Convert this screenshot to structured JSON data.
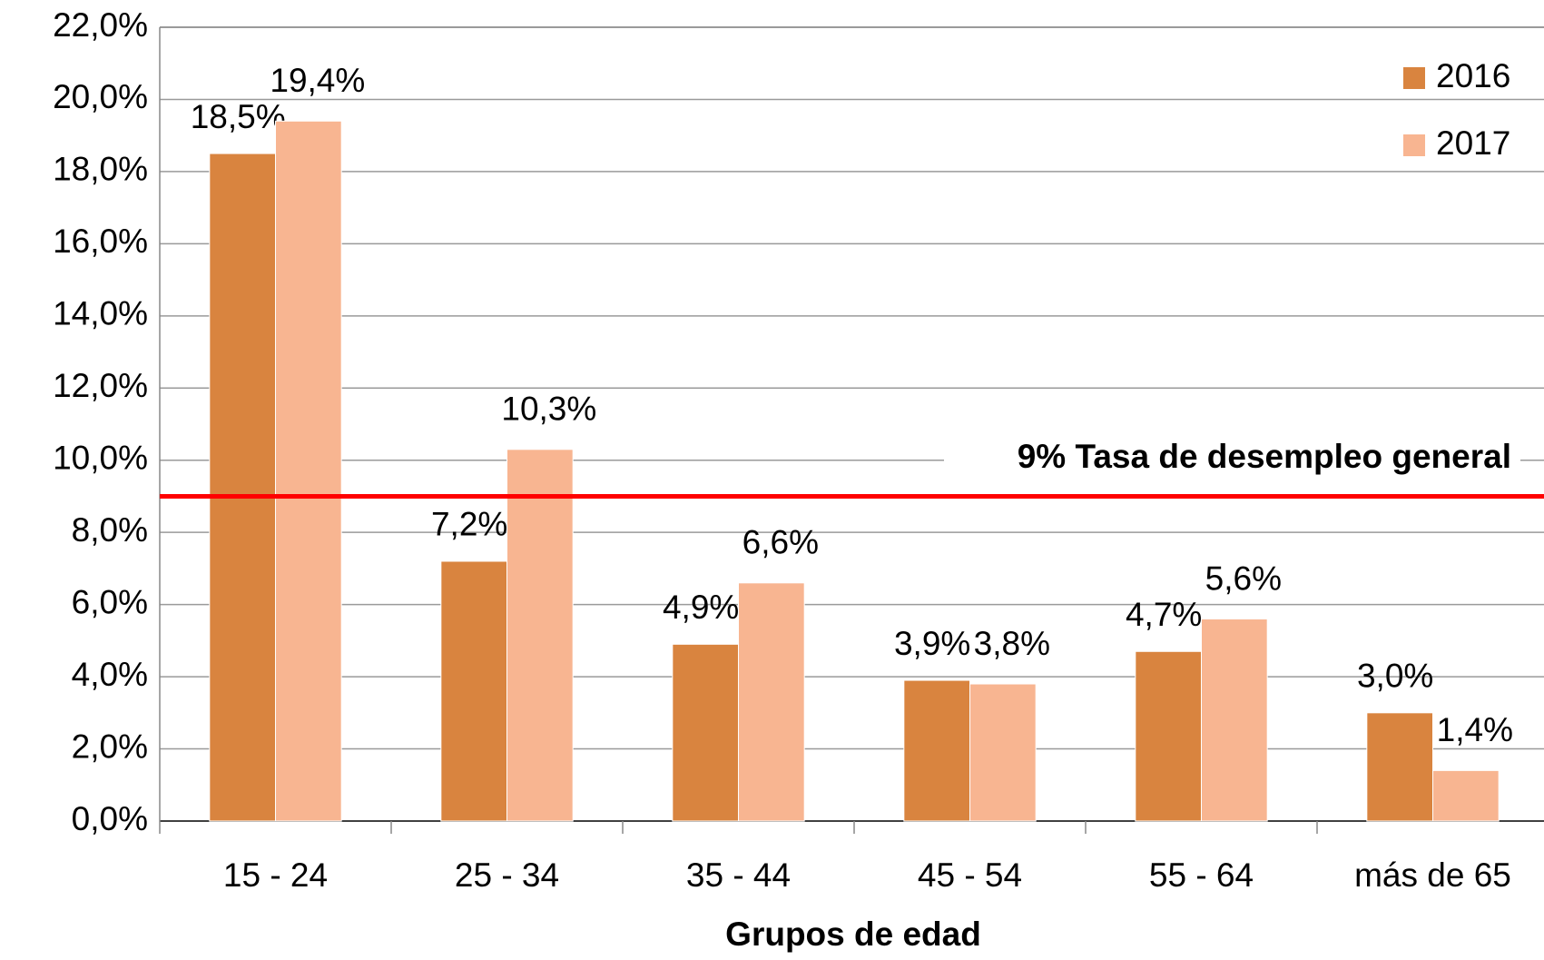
{
  "chart_data": {
    "type": "bar",
    "x_label": "Grupos de edad",
    "categories": [
      "15 - 24",
      "25 - 34",
      "35 - 44",
      "45 - 54",
      "55 - 64",
      "más de 65"
    ],
    "series": [
      {
        "name": "2016",
        "color": "#d9843f",
        "values": [
          18.5,
          7.2,
          4.9,
          3.9,
          4.7,
          3.0
        ],
        "value_labels": [
          "18,5%",
          "7,2%",
          "4,9%",
          "3,9%",
          "4,7%",
          "3,0%"
        ]
      },
      {
        "name": "2017",
        "color": "#f8b591",
        "values": [
          19.4,
          10.3,
          6.6,
          3.8,
          5.6,
          1.4
        ],
        "value_labels": [
          "19,4%",
          "10,3%",
          "6,6%",
          "3,8%",
          "5,6%",
          "1,4%"
        ]
      }
    ],
    "ylim": [
      0,
      22
    ],
    "yticks": [
      {
        "value": 0,
        "label": "0,0%"
      },
      {
        "value": 2,
        "label": "2,0%"
      },
      {
        "value": 4,
        "label": "4,0%"
      },
      {
        "value": 6,
        "label": "6,0%"
      },
      {
        "value": 8,
        "label": "8,0%"
      },
      {
        "value": 10,
        "label": "10,0%"
      },
      {
        "value": 12,
        "label": "12,0%"
      },
      {
        "value": 14,
        "label": "14,0%"
      },
      {
        "value": 16,
        "label": "16,0%"
      },
      {
        "value": 18,
        "label": "18,0%"
      },
      {
        "value": 20,
        "label": "20,0%"
      },
      {
        "value": 22,
        "label": "22,0%"
      }
    ],
    "grid": true,
    "legend": "top-right",
    "reference_line": {
      "value": 9,
      "label": "9% Tasa de desempleo general",
      "color": "#ff0000"
    }
  }
}
